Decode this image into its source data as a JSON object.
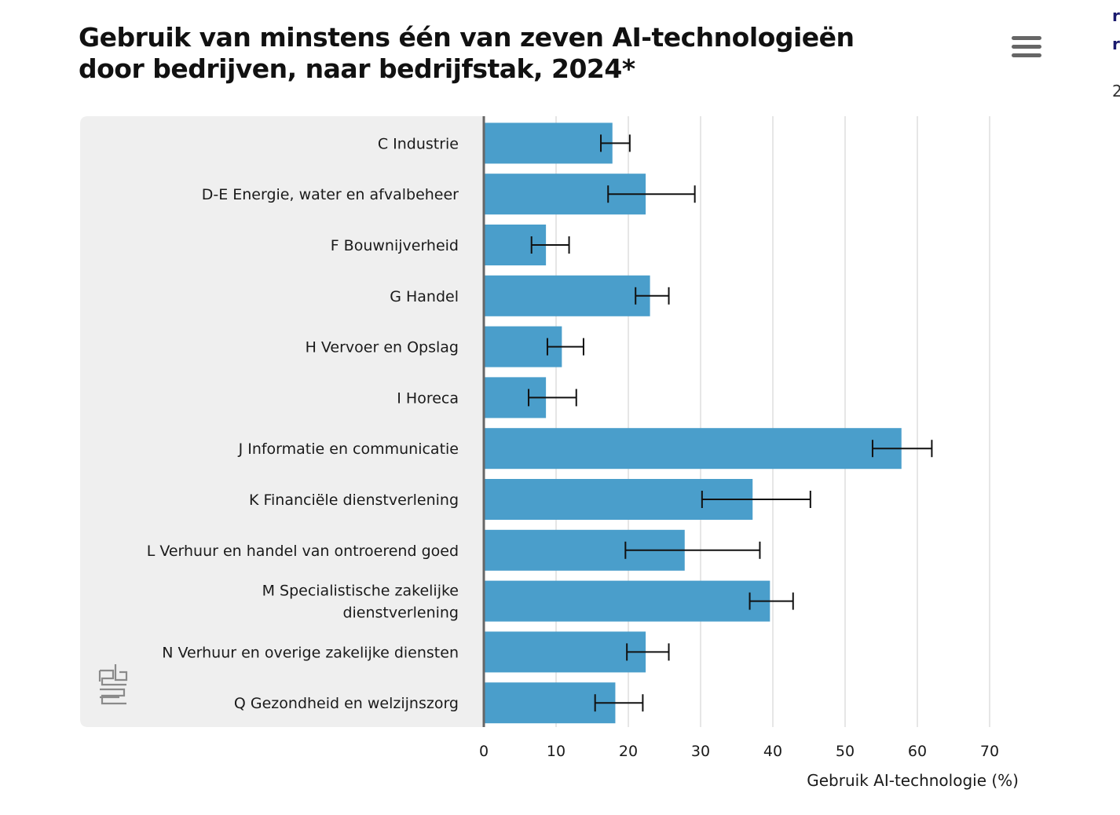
{
  "header": {
    "title": "Gebruik van minstens één van zeven AI-technologieën door bedrijven, naar bedrijfstak, 2024*"
  },
  "menu": {
    "icon": "hamburger-menu-icon"
  },
  "edge": {
    "chars": [
      "r",
      "r",
      "2"
    ]
  },
  "colors": {
    "bar": "#4a9ecb",
    "panel": "#efefef",
    "axis": "#666666",
    "grid": "#cccccc",
    "errorbar": "#111111"
  },
  "chart_data": {
    "type": "bar",
    "orientation": "horizontal",
    "categories": [
      "C Industrie",
      "D-E Energie, water en afvalbeheer",
      "F Bouwnijverheid",
      "G Handel",
      "H Vervoer en Opslag",
      "I Horeca",
      "J Informatie en communicatie",
      "K Financiële dienstverlening",
      "L Verhuur en handel van ontroerend goed",
      "M Specialistische zakelijke dienstverlening",
      "N Verhuur en overige zakelijke diensten",
      "Q Gezondheid en welzijnszorg"
    ],
    "category_lines": [
      [
        "C Industrie"
      ],
      [
        "D-E Energie, water en afvalbeheer"
      ],
      [
        "F Bouwnijverheid"
      ],
      [
        "G Handel"
      ],
      [
        "H Vervoer en Opslag"
      ],
      [
        "I Horeca"
      ],
      [
        "J Informatie en communicatie"
      ],
      [
        "K Financiële dienstverlening"
      ],
      [
        "L Verhuur en handel van ontroerend goed"
      ],
      [
        "M Specialistische zakelijke",
        "dienstverlening"
      ],
      [
        "N Verhuur en overige zakelijke diensten"
      ],
      [
        "Q Gezondheid en welzijnszorg"
      ]
    ],
    "values": [
      17.8,
      22.4,
      8.6,
      23.0,
      10.8,
      8.6,
      57.8,
      37.2,
      27.8,
      39.6,
      22.4,
      18.2
    ],
    "error_low": [
      16.2,
      17.2,
      6.6,
      21.0,
      8.8,
      6.2,
      53.8,
      30.2,
      19.6,
      36.8,
      19.8,
      15.4
    ],
    "error_high": [
      20.2,
      29.2,
      11.8,
      25.6,
      13.8,
      12.8,
      62.0,
      45.2,
      38.2,
      42.8,
      25.6,
      22.0
    ],
    "xlabel": "Gebruik AI-technologie (%)",
    "ylabel": "",
    "xlim": [
      0,
      70
    ],
    "xticks": [
      "0",
      "10",
      "20",
      "30",
      "40",
      "50",
      "60",
      "70"
    ],
    "grid": true,
    "legend": "none"
  }
}
